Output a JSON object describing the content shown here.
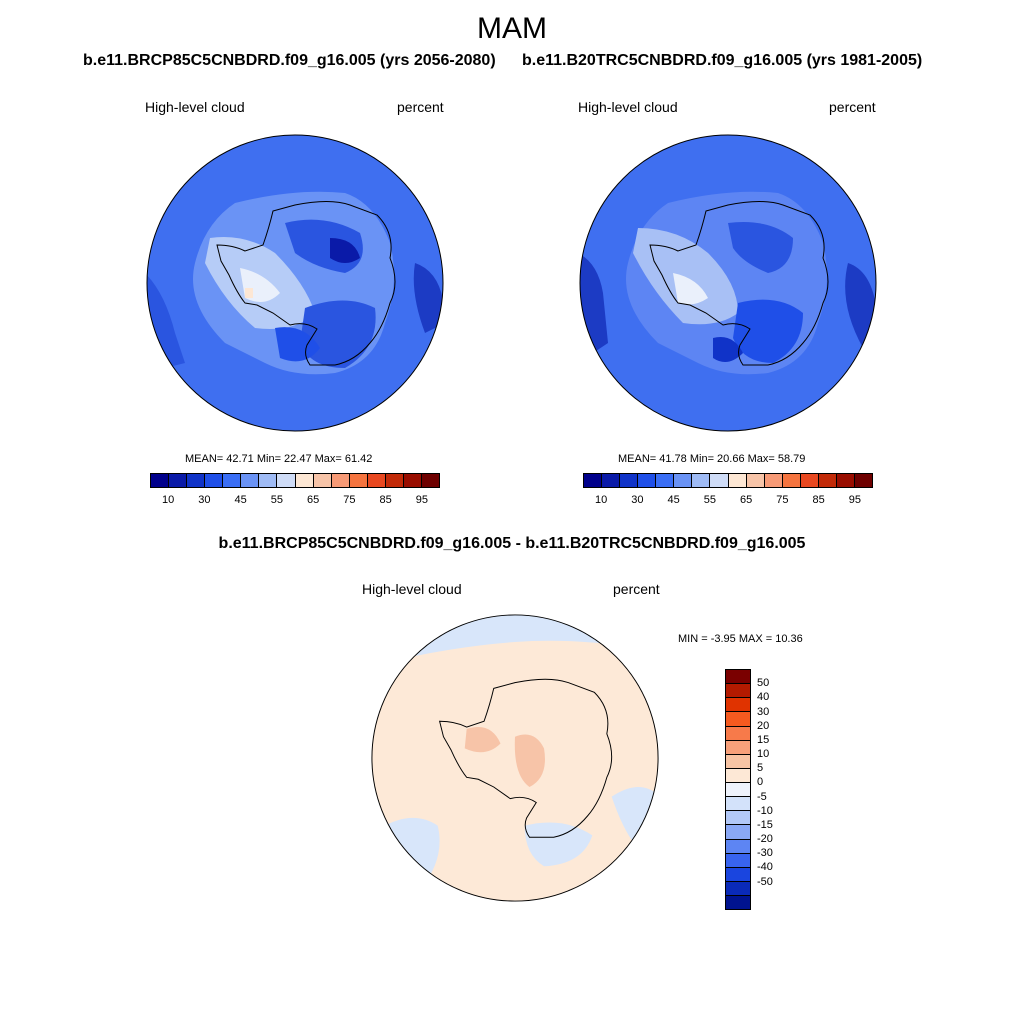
{
  "title": "MAM",
  "panels": [
    {
      "case": "b.e11.BRCP85C5CNBDRD.f09_g16.005 (yrs 2056-2080)",
      "variable": "High-level cloud",
      "units": "percent",
      "stats": "MEAN=  42.71  Min=  22.47  Max=  61.42",
      "background_color": "#3f6ff0"
    },
    {
      "case": "b.e11.B20TRC5CNBDRD.f09_g16.005 (yrs 1981-2005)",
      "variable": "High-level cloud",
      "units": "percent",
      "stats": "MEAN=  41.78  Min=  20.66  Max=  58.79",
      "background_color": "#3f6ff0"
    }
  ],
  "colorbar_main": {
    "colors": [
      "#00008b",
      "#0a1aa8",
      "#1033c8",
      "#1f4fe8",
      "#3a6ef5",
      "#6a93f5",
      "#9fbbf5",
      "#cfdcf7",
      "#fde7d4",
      "#f7c4a8",
      "#f79a76",
      "#f5743f",
      "#e84820",
      "#c22a08",
      "#990d00",
      "#6e0000"
    ],
    "tick_labels": [
      "10",
      "30",
      "45",
      "55",
      "65",
      "75",
      "85",
      "95"
    ]
  },
  "difference": {
    "title": "b.e11.BRCP85C5CNBDRD.f09_g16.005 - b.e11.B20TRC5CNBDRD.f09_g16.005",
    "variable": "High-level cloud",
    "units": "percent",
    "stats": "MIN =  -3.95 MAX =  10.36",
    "background_color": "#fde9d7"
  },
  "colorbar_diff": {
    "colors": [
      "#7a0000",
      "#b31a00",
      "#e03300",
      "#f55a1f",
      "#f77a4a",
      "#f7a07a",
      "#f7c4a4",
      "#fde8d6",
      "#eef2fb",
      "#d3e2fa",
      "#b2c8f7",
      "#8aa8f5",
      "#5d85f3",
      "#3864ef",
      "#1a45df",
      "#0a2ab8",
      "#00138f"
    ],
    "tick_labels": [
      "50",
      "40",
      "30",
      "20",
      "15",
      "10",
      "5",
      "0",
      "-5",
      "-10",
      "-15",
      "-20",
      "-30",
      "-40",
      "-50"
    ]
  }
}
